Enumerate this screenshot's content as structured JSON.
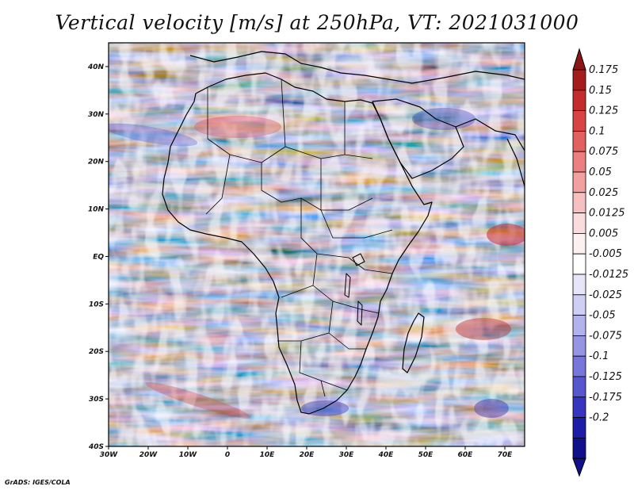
{
  "title": "Vertical velocity [m/s] at 250hPa, VT: 2021031000",
  "credit": "GrADS: IGES/COLA",
  "map": {
    "lon_range": [
      -30,
      75
    ],
    "lat_range": [
      -40,
      45
    ],
    "lat_ticks": [
      {
        "value": 40,
        "label": "40N"
      },
      {
        "value": 30,
        "label": "30N"
      },
      {
        "value": 20,
        "label": "20N"
      },
      {
        "value": 10,
        "label": "10N"
      },
      {
        "value": 0,
        "label": "EQ"
      },
      {
        "value": -10,
        "label": "10S"
      },
      {
        "value": -20,
        "label": "20S"
      },
      {
        "value": -30,
        "label": "30S"
      },
      {
        "value": -40,
        "label": "40S"
      }
    ],
    "lon_ticks": [
      {
        "value": -30,
        "label": "30W"
      },
      {
        "value": -20,
        "label": "20W"
      },
      {
        "value": -10,
        "label": "10W"
      },
      {
        "value": 0,
        "label": "0"
      },
      {
        "value": 10,
        "label": "10E"
      },
      {
        "value": 20,
        "label": "20E"
      },
      {
        "value": 30,
        "label": "30E"
      },
      {
        "value": 40,
        "label": "40E"
      },
      {
        "value": 50,
        "label": "50E"
      },
      {
        "value": 60,
        "label": "60E"
      },
      {
        "value": 70,
        "label": "70E"
      }
    ]
  },
  "colorbar": {
    "levels": [
      {
        "label": "0.175",
        "color": "#a51c1c"
      },
      {
        "label": "0.15",
        "color": "#c42b2b"
      },
      {
        "label": "0.125",
        "color": "#d84343"
      },
      {
        "label": "0.1",
        "color": "#e36060"
      },
      {
        "label": "0.075",
        "color": "#ec8080"
      },
      {
        "label": "0.05",
        "color": "#f2a0a0"
      },
      {
        "label": "0.025",
        "color": "#f7c0c0"
      },
      {
        "label": "0.0125",
        "color": "#fbdcdc"
      },
      {
        "label": "0.005",
        "color": "#fdf0f0"
      },
      {
        "label": "-0.005",
        "color": "#ffffff"
      },
      {
        "label": "-0.0125",
        "color": "#e6e6f8"
      },
      {
        "label": "-0.025",
        "color": "#cfcff3"
      },
      {
        "label": "-0.05",
        "color": "#b2b2ec"
      },
      {
        "label": "-0.075",
        "color": "#9595e4"
      },
      {
        "label": "-0.1",
        "color": "#7676db"
      },
      {
        "label": "-0.125",
        "color": "#5656cf"
      },
      {
        "label": "-0.175",
        "color": "#3535bf"
      },
      {
        "label": "-0.2",
        "color": "#1c1ca8"
      },
      {
        "label": "",
        "color": "#10108a"
      }
    ],
    "top_arrow_color": "#8b1414",
    "bottom_arrow_color": "#10108a"
  }
}
